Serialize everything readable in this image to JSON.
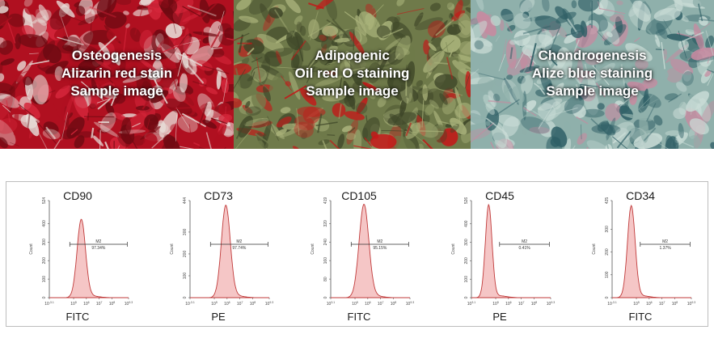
{
  "stain_panels": [
    {
      "lines": [
        "Osteogenesis",
        "Alizarin red stain",
        "Sample image"
      ],
      "colors": {
        "base": "#b01020",
        "light": "#e8ddd8",
        "dark": "#6e0a12",
        "accent": "#d4263a"
      }
    },
    {
      "lines": [
        "Adipogenic",
        "Oil red O staining",
        "Sample image"
      ],
      "colors": {
        "base": "#6f7a4a",
        "light": "#a9b27a",
        "dark": "#3e4628",
        "accent": "#c41818"
      }
    },
    {
      "lines": [
        "Chondrogenesis",
        "Alize blue staining",
        "Sample image"
      ],
      "colors": {
        "base": "#8fb0ab",
        "light": "#c9dcd6",
        "dark": "#2f5f66",
        "accent": "#c78aa0"
      }
    }
  ],
  "histograms": [
    {
      "marker": "CD90",
      "channel": "FITC",
      "y_ticks": [
        "0",
        "100",
        "200",
        "300",
        "400",
        "524"
      ],
      "x_ticks": [
        "10^-3.1",
        "10^5",
        "10^6",
        "10^7",
        "10^8",
        "10^9.3"
      ],
      "ylabel": "Count",
      "gate_name": "M2",
      "gate_percent": "97.34%",
      "peak_log": 5.6,
      "peak_count": 420,
      "ymax": 524,
      "width_log": 0.33
    },
    {
      "marker": "CD73",
      "channel": "PE",
      "y_ticks": [
        "0",
        "100",
        "200",
        "300",
        "444"
      ],
      "x_ticks": [
        "10^-3.1",
        "10^5",
        "10^6",
        "10^7",
        "10^8",
        "10^9.3"
      ],
      "ylabel": "Count",
      "gate_name": "M2",
      "gate_percent": "97.74%",
      "peak_log": 5.9,
      "peak_count": 420,
      "ymax": 444,
      "width_log": 0.35
    },
    {
      "marker": "CD105",
      "channel": "FITC",
      "y_ticks": [
        "0",
        "80",
        "160",
        "240",
        "320",
        "419"
      ],
      "x_ticks": [
        "10^3.1",
        "10^5",
        "10^6",
        "10^7",
        "10^8",
        "10^9.3"
      ],
      "ylabel": "Count",
      "gate_name": "M2",
      "gate_percent": "95.15%",
      "peak_log": 5.7,
      "peak_count": 400,
      "ymax": 419,
      "width_log": 0.38
    },
    {
      "marker": "CD45",
      "channel": "PE",
      "y_ticks": [
        "0",
        "100",
        "200",
        "300",
        "400",
        "526"
      ],
      "x_ticks": [
        "10^3.1",
        "10^5",
        "10^6",
        "10^7",
        "10^8",
        "10^9.3"
      ],
      "ylabel": "Count",
      "gate_name": "M2",
      "gate_percent": "0.41%",
      "peak_log": 4.45,
      "peak_count": 500,
      "ymax": 526,
      "width_log": 0.26
    },
    {
      "marker": "CD34",
      "channel": "FITC",
      "y_ticks": [
        "0",
        "100",
        "200",
        "300",
        "425"
      ],
      "x_ticks": [
        "10^-3.1",
        "10^5",
        "10^6",
        "10^7",
        "10^8",
        "10^9.3"
      ],
      "ylabel": "Count",
      "gate_name": "M2",
      "gate_percent": "1.37%",
      "peak_log": 4.6,
      "peak_count": 400,
      "ymax": 425,
      "width_log": 0.3
    }
  ],
  "plot_colors": {
    "fill": "#f5c6c6",
    "stroke": "#c03a3a",
    "axis": "#555555",
    "gate": "#333333"
  }
}
